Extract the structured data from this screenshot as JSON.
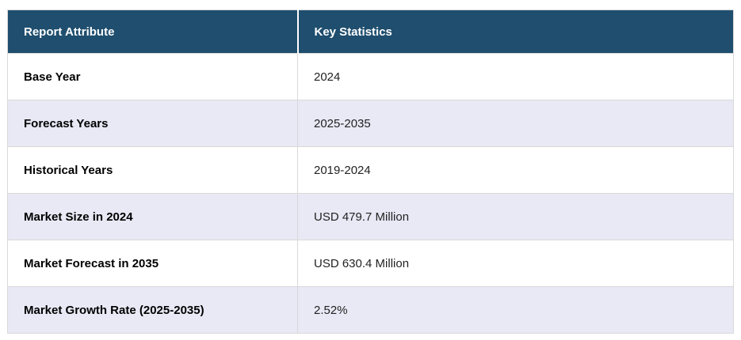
{
  "chart_data": {
    "type": "table",
    "title": "Report key statistics table",
    "columns": [
      "Report Attribute",
      "Key Statistics"
    ],
    "rows": [
      [
        "Base Year",
        "2024"
      ],
      [
        "Forecast Years",
        "2025-2035"
      ],
      [
        "Historical Years",
        "2019-2024"
      ],
      [
        "Market Size in 2024",
        "USD 479.7 Million"
      ],
      [
        "Market Forecast in 2035",
        "USD 630.4 Million"
      ],
      [
        "Market Growth Rate (2025-2035)",
        "2.52%"
      ]
    ]
  },
  "colors": {
    "header_bg": "#1f4e6e",
    "header_text": "#ffffff",
    "row_bg": "#ffffff",
    "row_alt_bg": "#e8e9f5",
    "border_color": "#d9d9d9"
  }
}
